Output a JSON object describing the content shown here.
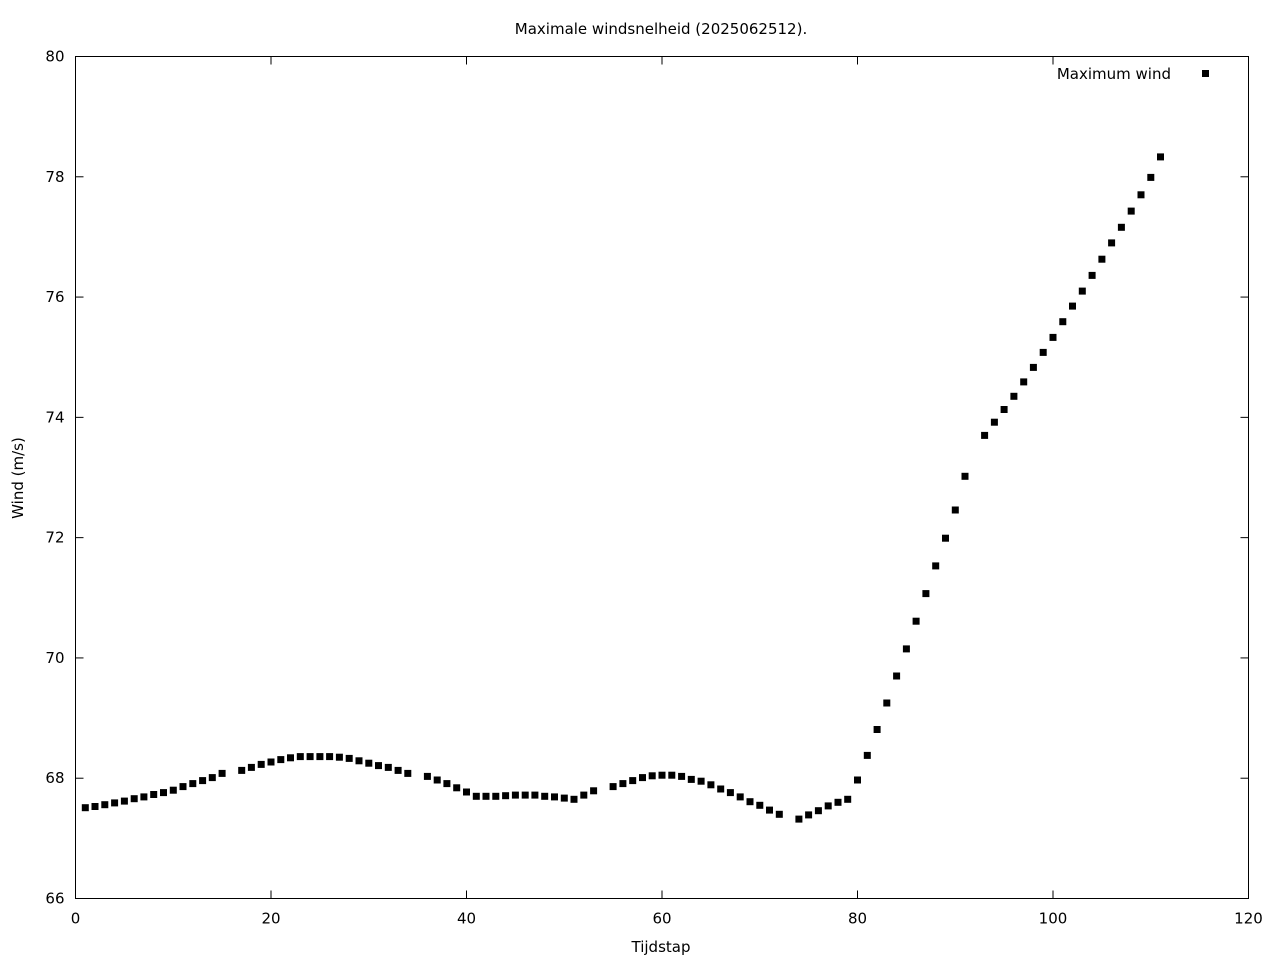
{
  "chart_data": {
    "type": "scatter",
    "title": "Maximale windsnelheid (2025062512).",
    "xlabel": "Tijdstap",
    "ylabel": "Wind (m/s)",
    "xlim": [
      0,
      120
    ],
    "ylim": [
      66,
      80
    ],
    "xticks": [
      0,
      20,
      40,
      60,
      80,
      100,
      120
    ],
    "yticks": [
      66,
      68,
      70,
      72,
      74,
      76,
      78,
      80
    ],
    "grid": false,
    "legend_position": "top-right",
    "colors": {
      "marker": "#000000",
      "axis": "#000000"
    },
    "series": [
      {
        "name": "Maximum wind",
        "points": [
          [
            1,
            67.51
          ],
          [
            2,
            67.53
          ],
          [
            3,
            67.56
          ],
          [
            4,
            67.59
          ],
          [
            5,
            67.62
          ],
          [
            6,
            67.66
          ],
          [
            7,
            67.69
          ],
          [
            8,
            67.73
          ],
          [
            9,
            67.76
          ],
          [
            10,
            67.8
          ],
          [
            11,
            67.86
          ],
          [
            12,
            67.91
          ],
          [
            13,
            67.96
          ],
          [
            14,
            68.01
          ],
          [
            15,
            68.08
          ],
          [
            17,
            68.13
          ],
          [
            18,
            68.18
          ],
          [
            19,
            68.23
          ],
          [
            20,
            68.27
          ],
          [
            21,
            68.31
          ],
          [
            22,
            68.34
          ],
          [
            23,
            68.36
          ],
          [
            24,
            68.36
          ],
          [
            25,
            68.36
          ],
          [
            26,
            68.36
          ],
          [
            27,
            68.35
          ],
          [
            28,
            68.33
          ],
          [
            29,
            68.29
          ],
          [
            30,
            68.25
          ],
          [
            31,
            68.21
          ],
          [
            32,
            68.18
          ],
          [
            33,
            68.13
          ],
          [
            34,
            68.08
          ],
          [
            36,
            68.03
          ],
          [
            37,
            67.97
          ],
          [
            38,
            67.91
          ],
          [
            39,
            67.84
          ],
          [
            40,
            67.77
          ],
          [
            41,
            67.7
          ],
          [
            42,
            67.7
          ],
          [
            43,
            67.7
          ],
          [
            44,
            67.71
          ],
          [
            45,
            67.72
          ],
          [
            46,
            67.72
          ],
          [
            47,
            67.72
          ],
          [
            48,
            67.7
          ],
          [
            49,
            67.69
          ],
          [
            50,
            67.67
          ],
          [
            51,
            67.65
          ],
          [
            52,
            67.72
          ],
          [
            53,
            67.79
          ],
          [
            55,
            67.86
          ],
          [
            56,
            67.91
          ],
          [
            57,
            67.96
          ],
          [
            58,
            68.01
          ],
          [
            59,
            68.04
          ],
          [
            60,
            68.05
          ],
          [
            61,
            68.05
          ],
          [
            62,
            68.03
          ],
          [
            63,
            67.98
          ],
          [
            64,
            67.95
          ],
          [
            65,
            67.89
          ],
          [
            66,
            67.82
          ],
          [
            67,
            67.76
          ],
          [
            68,
            67.69
          ],
          [
            69,
            67.61
          ],
          [
            70,
            67.55
          ],
          [
            71,
            67.47
          ],
          [
            72,
            67.4
          ],
          [
            74,
            67.32
          ],
          [
            75,
            67.39
          ],
          [
            76,
            67.46
          ],
          [
            77,
            67.54
          ],
          [
            78,
            67.6
          ],
          [
            79,
            67.65
          ],
          [
            80,
            67.97
          ],
          [
            81,
            68.38
          ],
          [
            82,
            68.81
          ],
          [
            83,
            69.25
          ],
          [
            84,
            69.7
          ],
          [
            85,
            70.15
          ],
          [
            86,
            70.61
          ],
          [
            87,
            71.07
          ],
          [
            88,
            71.53
          ],
          [
            89,
            71.99
          ],
          [
            90,
            72.46
          ],
          [
            91,
            73.02
          ],
          [
            93,
            73.7
          ],
          [
            94,
            73.92
          ],
          [
            95,
            74.13
          ],
          [
            96,
            74.35
          ],
          [
            97,
            74.59
          ],
          [
            98,
            74.83
          ],
          [
            99,
            75.08
          ],
          [
            100,
            75.33
          ],
          [
            101,
            75.59
          ],
          [
            102,
            75.85
          ],
          [
            103,
            76.1
          ],
          [
            104,
            76.36
          ],
          [
            105,
            76.63
          ],
          [
            106,
            76.9
          ],
          [
            107,
            77.16
          ],
          [
            108,
            77.43
          ],
          [
            109,
            77.7
          ],
          [
            110,
            77.99
          ],
          [
            111,
            78.33
          ]
        ]
      }
    ]
  }
}
